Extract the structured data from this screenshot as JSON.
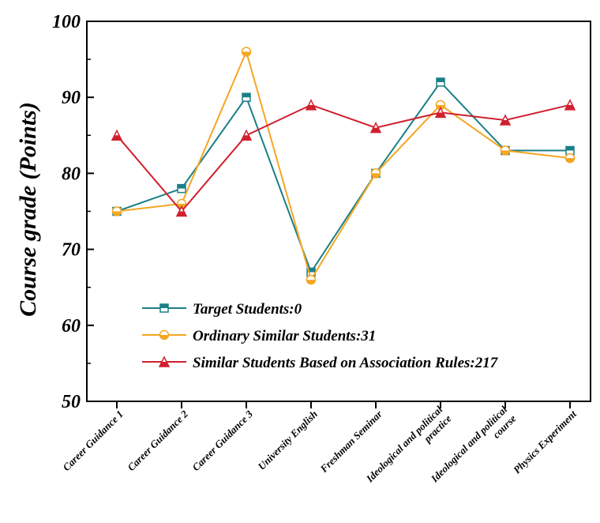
{
  "chart_data": {
    "type": "line",
    "title": "",
    "xlabel": "",
    "ylabel": "Course grade (Points)",
    "ylim": [
      50,
      100
    ],
    "yticks": [
      "50",
      "60",
      "70",
      "80",
      "90",
      "100"
    ],
    "grid": false,
    "legend_position": "bottom-left",
    "categories": [
      "Career Guidance 1",
      "Career Guidance 2",
      "Career Guidance 3",
      "University English",
      "Freshman Seminar",
      "Ideological and political practice",
      "Ideological and political course",
      "Physics Experiment"
    ],
    "category_lines": [
      [
        "Career Guidance 1"
      ],
      [
        "Career Guidance 2"
      ],
      [
        "Career Guidance 3"
      ],
      [
        "University English"
      ],
      [
        "Freshman Seminar"
      ],
      [
        "Ideological and political",
        "practice"
      ],
      [
        "Ideological and political",
        "course"
      ],
      [
        "Physics Experiment"
      ]
    ],
    "series": [
      {
        "name": "Target Students:0",
        "color": "#1a7f86",
        "marker": "square",
        "values": [
          75,
          78,
          90,
          67,
          80,
          92,
          83,
          83
        ]
      },
      {
        "name": "Ordinary Similar Students:31",
        "color": "#f5a623",
        "marker": "circle",
        "values": [
          75,
          76,
          96,
          66,
          80,
          89,
          83,
          82
        ]
      },
      {
        "name": "Similar Students Based on Association Rules:217",
        "color": "#d0202e",
        "marker": "triangle",
        "values": [
          85,
          75,
          85,
          89,
          86,
          88,
          87,
          89
        ]
      }
    ]
  }
}
